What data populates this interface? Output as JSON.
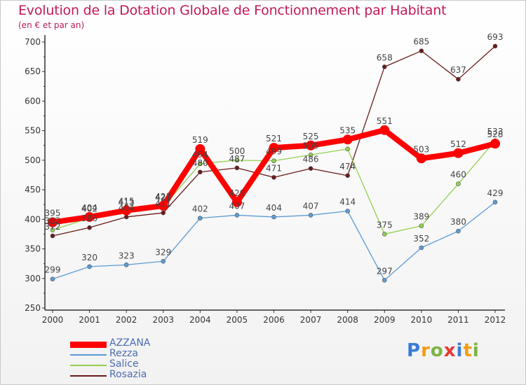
{
  "page": {
    "title": "Evolution de la Dotation Globale de Fonctionnement par Habitant",
    "subtitle": "(en € et par an)",
    "logo_text": "Proxiti"
  },
  "chart_data": {
    "type": "line",
    "title": "Evolution de la Dotation Globale de Fonctionnement par Habitant",
    "subtitle": "(en € et par an)",
    "xlabel": "",
    "ylabel": "",
    "x": [
      "2000",
      "2001",
      "2002",
      "2003",
      "2004",
      "2005",
      "2006",
      "2007",
      "2008",
      "2009",
      "2010",
      "2011",
      "2012"
    ],
    "ylim": [
      250,
      700
    ],
    "yticks": [
      250,
      300,
      350,
      400,
      450,
      500,
      550,
      600,
      650,
      700
    ],
    "grid": false,
    "legend_position": "bottom-left",
    "series": [
      {
        "name": "AZZANA",
        "color": "#ff0000",
        "values": [
          395,
          404,
          415,
          423,
          519,
          429,
          521,
          525,
          535,
          551,
          503,
          512,
          528
        ],
        "labels": [
          "395",
          "404",
          "415",
          "423",
          "519",
          "429",
          "521",
          "525",
          "535",
          "551",
          "503",
          "512",
          "528"
        ]
      },
      {
        "name": "Rezza",
        "color": "#5b9bd5",
        "values": [
          299,
          320,
          323,
          329,
          402,
          407,
          404,
          407,
          414,
          297,
          352,
          380,
          429
        ],
        "labels": [
          "299",
          "320",
          "323",
          "329",
          "402",
          "407",
          "404",
          "407",
          "414",
          "297",
          "352",
          "380",
          "429"
        ]
      },
      {
        "name": "Salice",
        "color": "#92d050",
        "values": [
          382,
          402,
          413,
          421,
          494,
          500,
          499,
          509,
          519,
          375,
          389,
          460,
          533
        ],
        "labels": [
          "382",
          "402",
          "413",
          "421",
          "494",
          "500",
          "499",
          "509",
          "",
          "375",
          "389",
          "460",
          "533"
        ]
      },
      {
        "name": "Rosazia",
        "color": "#6b1a1a",
        "values": [
          372,
          386,
          404,
          411,
          480,
          487,
          471,
          486,
          474,
          658,
          685,
          637,
          693
        ],
        "labels": [
          "372",
          "386",
          "404",
          "411",
          "480",
          "487",
          "471",
          "486",
          "474",
          "658",
          "685",
          "637",
          "693"
        ]
      }
    ]
  }
}
